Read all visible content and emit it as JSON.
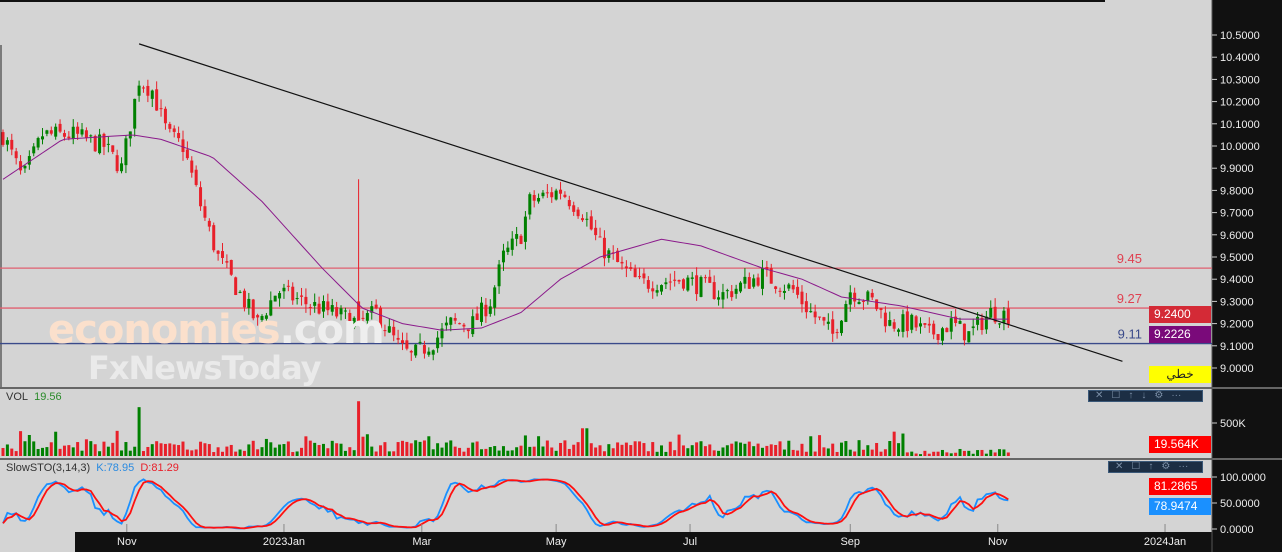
{
  "colors": {
    "up": "#008000",
    "down": "#e8202a",
    "ma": "#8b1a8b",
    "res": "#e06070",
    "sup": "#3a4a8a",
    "bg": "#d4d4d4",
    "axis": "#111111"
  },
  "watermark": {
    "line1": "economies",
    "line1b": ".com",
    "line2": "FxNewsToday"
  },
  "price_panel": {
    "tag_last": "9.2400",
    "tag_ma": "9.2226",
    "tag_mode": "خطي"
  },
  "volume_panel": {
    "title": "VOL",
    "value": "19.56",
    "tag": "19.564K"
  },
  "stoch_panel": {
    "title": "SlowSTO(3,14,3)",
    "k_label": "K:78.95",
    "d_label": "D:81.29",
    "tag_d": "81.2865",
    "tag_k": "78.9474"
  },
  "panel_toolbar": [
    "✕",
    "☐",
    "↑",
    "↓",
    "⚙",
    "···"
  ],
  "chart_data": {
    "type": "candlestick",
    "bars": 230,
    "price_ylim": [
      8.95,
      10.55
    ],
    "price_ticks": [
      "10.5000",
      "10.4000",
      "10.3000",
      "10.2000",
      "10.1000",
      "10.0000",
      "9.9000",
      "9.8000",
      "9.7000",
      "9.6000",
      "9.5000",
      "9.4000",
      "9.3000",
      "9.2000",
      "9.1000",
      "9.0000"
    ],
    "close_path": [
      [
        0,
        10.05
      ],
      [
        4.5,
        9.85
      ],
      [
        9,
        10.05
      ],
      [
        16,
        10.05
      ],
      [
        23,
        10.0
      ],
      [
        27,
        9.9
      ],
      [
        31,
        10.3
      ],
      [
        34,
        10.25
      ],
      [
        37.5,
        10.05
      ],
      [
        41,
        10.0
      ],
      [
        45.5,
        9.7
      ],
      [
        49,
        9.5
      ],
      [
        53.5,
        9.35
      ],
      [
        58,
        9.2
      ],
      [
        62.5,
        9.35
      ],
      [
        68,
        9.3
      ],
      [
        75,
        9.25
      ],
      [
        81,
        9.2
      ],
      [
        85,
        9.25
      ],
      [
        90,
        9.1
      ],
      [
        93,
        9.05
      ],
      [
        98,
        9.12
      ],
      [
        102,
        9.2
      ],
      [
        107,
        9.2
      ],
      [
        111,
        9.3
      ],
      [
        114,
        9.5
      ],
      [
        118,
        9.6
      ],
      [
        120,
        9.75
      ],
      [
        127,
        9.8
      ],
      [
        132,
        9.7
      ],
      [
        136,
        9.55
      ],
      [
        141,
        9.45
      ],
      [
        145,
        9.38
      ],
      [
        155,
        9.4
      ],
      [
        164,
        9.33
      ],
      [
        173,
        9.42
      ],
      [
        180,
        9.35
      ],
      [
        184,
        9.25
      ],
      [
        189,
        9.15
      ],
      [
        193,
        9.35
      ],
      [
        198,
        9.3
      ],
      [
        202,
        9.2
      ],
      [
        207,
        9.2
      ],
      [
        211,
        9.15
      ],
      [
        216,
        9.2
      ],
      [
        220,
        9.15
      ],
      [
        225,
        9.25
      ],
      [
        229,
        9.24
      ]
    ],
    "moving_average": [
      [
        0,
        9.85
      ],
      [
        13.6,
        10.03
      ],
      [
        29.5,
        10.05
      ],
      [
        36,
        10.03
      ],
      [
        47.7,
        9.95
      ],
      [
        59,
        9.75
      ],
      [
        72.7,
        9.45
      ],
      [
        81.8,
        9.27
      ],
      [
        91,
        9.2
      ],
      [
        100,
        9.17
      ],
      [
        109,
        9.18
      ],
      [
        118,
        9.25
      ],
      [
        127,
        9.4
      ],
      [
        136,
        9.5
      ],
      [
        150,
        9.58
      ],
      [
        159,
        9.55
      ],
      [
        173,
        9.45
      ],
      [
        182,
        9.4
      ],
      [
        191,
        9.32
      ],
      [
        204.5,
        9.28
      ],
      [
        218,
        9.22
      ],
      [
        229,
        9.22
      ]
    ],
    "spike": {
      "bar": 81,
      "high": 9.85,
      "low": 9.15
    },
    "trendline": [
      [
        31,
        10.46
      ],
      [
        255,
        9.03
      ]
    ],
    "levels": [
      {
        "value": 9.45,
        "label": "9.45",
        "kind": "resistance"
      },
      {
        "value": 9.27,
        "label": "9.27",
        "kind": "resistance"
      },
      {
        "value": 9.11,
        "label": "9.11",
        "kind": "support"
      }
    ],
    "volume_ticks": [
      {
        "value": 500,
        "label": "500K"
      }
    ],
    "volume_ylim": [
      0,
      560
    ],
    "stoch_ticks": [
      {
        "value": 100,
        "label": "100.0000"
      },
      {
        "value": 50,
        "label": "50.0000"
      },
      {
        "value": 0,
        "label": "0.0000"
      }
    ],
    "x_ticks": [
      {
        "bar": 28.2,
        "label": "Nov"
      },
      {
        "bar": 64,
        "label": "2023Jan"
      },
      {
        "bar": 95.4,
        "label": "Mar"
      },
      {
        "bar": 126,
        "label": "May"
      },
      {
        "bar": 156.5,
        "label": "Jul"
      },
      {
        "bar": 193,
        "label": "Sep"
      },
      {
        "bar": 226.6,
        "label": "Nov"
      },
      {
        "bar": 264.7,
        "label": "2024Jan"
      }
    ]
  }
}
